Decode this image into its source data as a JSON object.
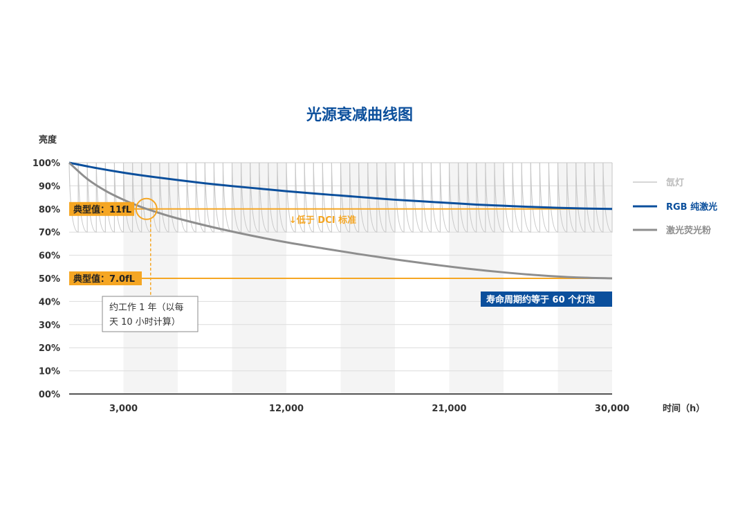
{
  "chart_data": {
    "type": "line",
    "title": "光源衰减曲线图",
    "ylabel": "亮度",
    "xlabel": "时间（h）",
    "xlim": [
      0,
      30000
    ],
    "ylim": [
      0,
      100
    ],
    "x_ticks": [
      {
        "value": 3000,
        "label": "3,000"
      },
      {
        "value": 12000,
        "label": "12,000"
      },
      {
        "value": 21000,
        "label": "21,000"
      },
      {
        "value": 30000,
        "label": "30,000"
      }
    ],
    "y_ticks": [
      {
        "value": 0,
        "label": "00%"
      },
      {
        "value": 10,
        "label": "10%"
      },
      {
        "value": 20,
        "label": "20%"
      },
      {
        "value": 30,
        "label": "30%"
      },
      {
        "value": 40,
        "label": "40%"
      },
      {
        "value": 50,
        "label": "50%"
      },
      {
        "value": 60,
        "label": "60%"
      },
      {
        "value": 70,
        "label": "70%"
      },
      {
        "value": 80,
        "label": "80%"
      },
      {
        "value": 90,
        "label": "90%"
      },
      {
        "value": 100,
        "label": "100%"
      }
    ],
    "grid": true,
    "legend_position": "right",
    "series": [
      {
        "name": "氙灯",
        "color": "#c8c8c8",
        "style": "sawtooth",
        "peak": 100,
        "trough": 70,
        "period": 500
      },
      {
        "name": "RGB 纯激光",
        "color": "#0b4f9c",
        "x": [
          0,
          1500,
          3000,
          4500,
          6000,
          7500,
          9000,
          10500,
          12000,
          13500,
          15000,
          16500,
          18000,
          19500,
          21000,
          22500,
          24000,
          25500,
          27000,
          28500,
          30000
        ],
        "y": [
          100,
          97.7,
          95.7,
          94,
          92.5,
          91.1,
          89.9,
          88.8,
          87.7,
          86.7,
          85.8,
          84.9,
          84,
          83.3,
          82.6,
          81.9,
          81.4,
          80.9,
          80.5,
          80.2,
          80
        ]
      },
      {
        "name": "激光荧光粉",
        "color": "#8e8e8e",
        "x": [
          0,
          1000,
          2000,
          3000,
          4000,
          5000,
          6000,
          8000,
          10000,
          12000,
          14000,
          16000,
          18000,
          20000,
          22000,
          24000,
          26000,
          28000,
          30000
        ],
        "y": [
          100,
          93,
          87.9,
          84,
          80.8,
          78.2,
          75.9,
          72,
          68.6,
          65.6,
          63,
          60.5,
          58.2,
          56.1,
          54.2,
          52.6,
          51.3,
          50.4,
          50
        ]
      }
    ],
    "annotations": {
      "typical_11": "典型值：11fL",
      "typical_7": "典型值：7.0fL",
      "typical_11_level": 80,
      "typical_7_level": 50,
      "dci_note": "↓低于 DCI 标准",
      "work_year_line1": "约工作 1 年（以每",
      "work_year_line2": "天 10 小时计算）",
      "work_year_x": 4500,
      "lifespan_note": "寿命周期约等于 60 个灯泡",
      "accent_color": "#f5a623",
      "box_color": "#0b4f9c"
    }
  }
}
